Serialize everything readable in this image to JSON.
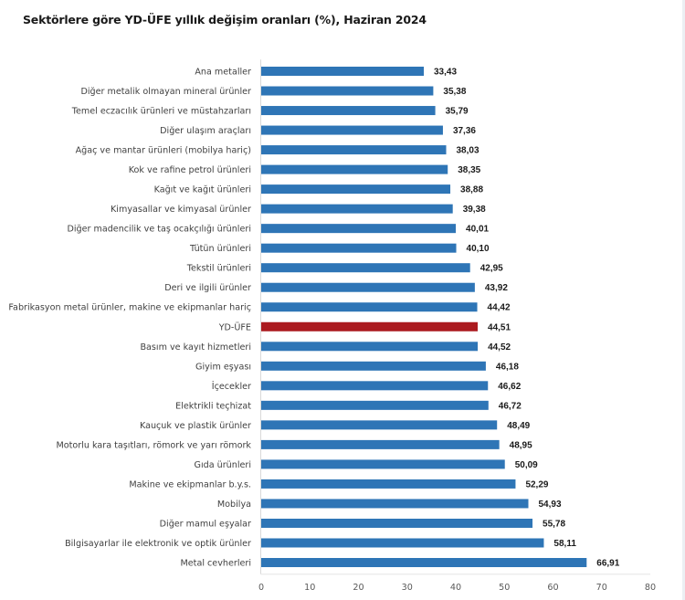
{
  "chart_data": {
    "type": "bar",
    "orientation": "horizontal",
    "title": "Sektörlere göre YD-ÜFE yıllık değişim oranları (%), Haziran 2024",
    "xlabel": "",
    "ylabel": "",
    "xlim": [
      0,
      80
    ],
    "xticks": [
      0,
      10,
      20,
      30,
      40,
      50,
      60,
      70,
      80
    ],
    "xtick_labels": [
      "0",
      "10",
      "20",
      "30",
      "40",
      "50",
      "60",
      "70",
      "80"
    ],
    "grid": false,
    "legend": "none",
    "bar_color": "#2e75b6",
    "highlight_color": "#ab1a1f",
    "highlight_category": "YD-ÜFE",
    "categories": [
      "Ana metaller",
      "Diğer metalik olmayan mineral ürünler",
      "Temel eczacılık ürünleri ve müstahzarları",
      "Diğer ulaşım araçları",
      "Ağaç ve mantar ürünleri (mobilya hariç)",
      "Kok ve rafine petrol ürünleri",
      "Kağıt ve kağıt ürünleri",
      "Kimyasallar ve kimyasal ürünler",
      "Diğer madencilik ve taş ocakçılığı ürünleri",
      "Tütün ürünleri",
      "Tekstil ürünleri",
      "Deri ve ilgili ürünler",
      "Fabrikasyon metal ürünler, makine ve ekipmanlar hariç",
      "YD-ÜFE",
      "Basım ve kayıt hizmetleri",
      "Giyim eşyası",
      "İçecekler",
      "Elektrikli teçhizat",
      "Kauçuk ve plastik ürünler",
      "Motorlu kara taşıtları, römork ve yarı römork",
      "Gıda ürünleri",
      "Makine ve ekipmanlar b.y.s.",
      "Mobilya",
      "Diğer mamul eşyalar",
      "Bilgisayarlar ile elektronik ve optik ürünler",
      "Metal cevherleri"
    ],
    "values": [
      33.43,
      35.38,
      35.79,
      37.36,
      38.03,
      38.35,
      38.88,
      39.38,
      40.01,
      40.1,
      42.95,
      43.92,
      44.42,
      44.51,
      44.52,
      46.18,
      46.62,
      46.72,
      48.49,
      48.95,
      50.09,
      52.29,
      54.93,
      55.78,
      58.11,
      66.91
    ],
    "value_labels": [
      "33,43",
      "35,38",
      "35,79",
      "37,36",
      "38,03",
      "38,35",
      "38,88",
      "39,38",
      "40,01",
      "40,10",
      "42,95",
      "43,92",
      "44,42",
      "44,51",
      "44,52",
      "46,18",
      "46,62",
      "46,72",
      "48,49",
      "48,95",
      "50,09",
      "52,29",
      "54,93",
      "55,78",
      "58,11",
      "66,91"
    ]
  }
}
